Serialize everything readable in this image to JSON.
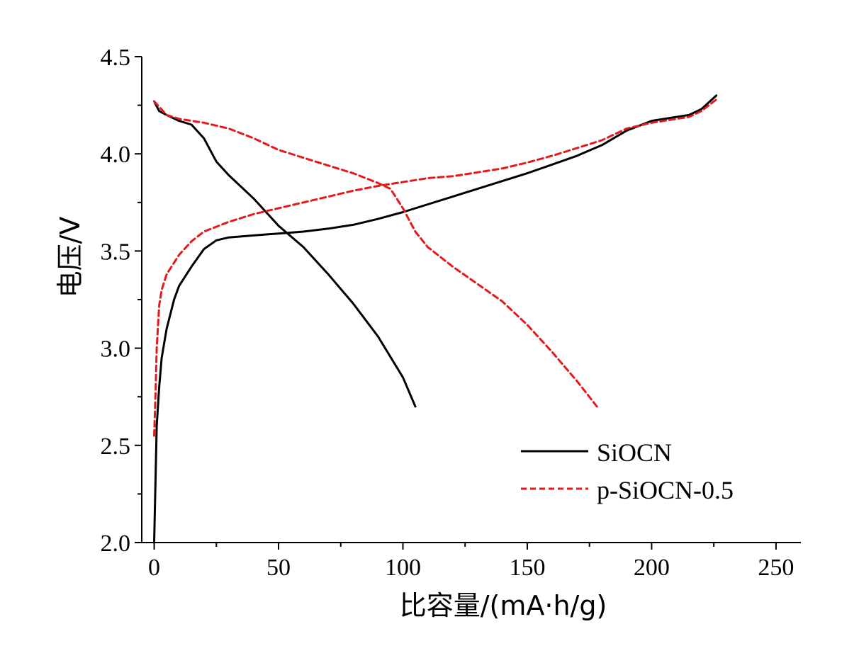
{
  "chart_data": {
    "type": "line",
    "xlabel": "比容量/(mA·h/g)",
    "ylabel": "电压/V",
    "xlim": [
      -5,
      260
    ],
    "ylim": [
      2.0,
      4.5
    ],
    "xticks": [
      0,
      50,
      100,
      150,
      200,
      250
    ],
    "xtick_labels": [
      "0",
      "50",
      "100",
      "150",
      "200",
      "250"
    ],
    "yticks": [
      2.0,
      2.5,
      3.0,
      3.5,
      4.0,
      4.5
    ],
    "ytick_labels": [
      "2.0",
      "2.5",
      "3.0",
      "3.5",
      "4.0",
      "4.5"
    ],
    "grid": false,
    "legend_position": "bottom-right",
    "series": [
      {
        "name": "SiOCN",
        "color": "#000000",
        "dash": "solid",
        "charge": {
          "x": [
            0,
            0.5,
            1,
            2,
            3,
            5,
            8,
            10,
            15,
            20,
            25,
            30,
            40,
            50,
            60,
            70,
            80,
            90,
            100,
            110,
            120,
            130,
            140,
            150,
            160,
            170,
            180,
            190,
            200,
            210,
            215,
            220,
            226
          ],
          "y": [
            2.0,
            2.3,
            2.6,
            2.8,
            2.95,
            3.1,
            3.25,
            3.32,
            3.42,
            3.51,
            3.555,
            3.57,
            3.58,
            3.59,
            3.6,
            3.615,
            3.635,
            3.665,
            3.7,
            3.74,
            3.78,
            3.82,
            3.86,
            3.9,
            3.945,
            3.99,
            4.045,
            4.12,
            4.17,
            4.19,
            4.2,
            4.23,
            4.3
          ]
        },
        "discharge": {
          "x": [
            0,
            2,
            5,
            10,
            15,
            20,
            25,
            30,
            40,
            50,
            60,
            70,
            80,
            90,
            100,
            105
          ],
          "y": [
            4.27,
            4.22,
            4.2,
            4.17,
            4.15,
            4.08,
            3.96,
            3.89,
            3.77,
            3.63,
            3.52,
            3.38,
            3.23,
            3.06,
            2.85,
            2.7
          ]
        }
      },
      {
        "name": "p-SiOCN-0.5",
        "color": "#e31a1c",
        "dash": "dashed",
        "charge": {
          "x": [
            0,
            0.5,
            1,
            2,
            3,
            5,
            10,
            15,
            20,
            30,
            40,
            50,
            60,
            70,
            80,
            90,
            100,
            110,
            120,
            130,
            140,
            150,
            160,
            170,
            180,
            190,
            200,
            210,
            215,
            220,
            226
          ],
          "y": [
            2.55,
            2.75,
            3.0,
            3.22,
            3.3,
            3.38,
            3.48,
            3.55,
            3.6,
            3.65,
            3.69,
            3.72,
            3.75,
            3.78,
            3.81,
            3.835,
            3.855,
            3.875,
            3.885,
            3.905,
            3.925,
            3.955,
            3.99,
            4.03,
            4.07,
            4.13,
            4.16,
            4.18,
            4.19,
            4.22,
            4.28
          ]
        },
        "discharge": {
          "x": [
            0,
            5,
            10,
            20,
            30,
            40,
            50,
            60,
            70,
            80,
            90,
            95,
            100,
            105,
            110,
            120,
            130,
            140,
            150,
            160,
            170,
            178
          ],
          "y": [
            4.27,
            4.2,
            4.18,
            4.16,
            4.13,
            4.08,
            4.02,
            3.98,
            3.94,
            3.9,
            3.85,
            3.82,
            3.72,
            3.6,
            3.52,
            3.42,
            3.33,
            3.24,
            3.12,
            2.98,
            2.83,
            2.7
          ]
        }
      }
    ]
  }
}
